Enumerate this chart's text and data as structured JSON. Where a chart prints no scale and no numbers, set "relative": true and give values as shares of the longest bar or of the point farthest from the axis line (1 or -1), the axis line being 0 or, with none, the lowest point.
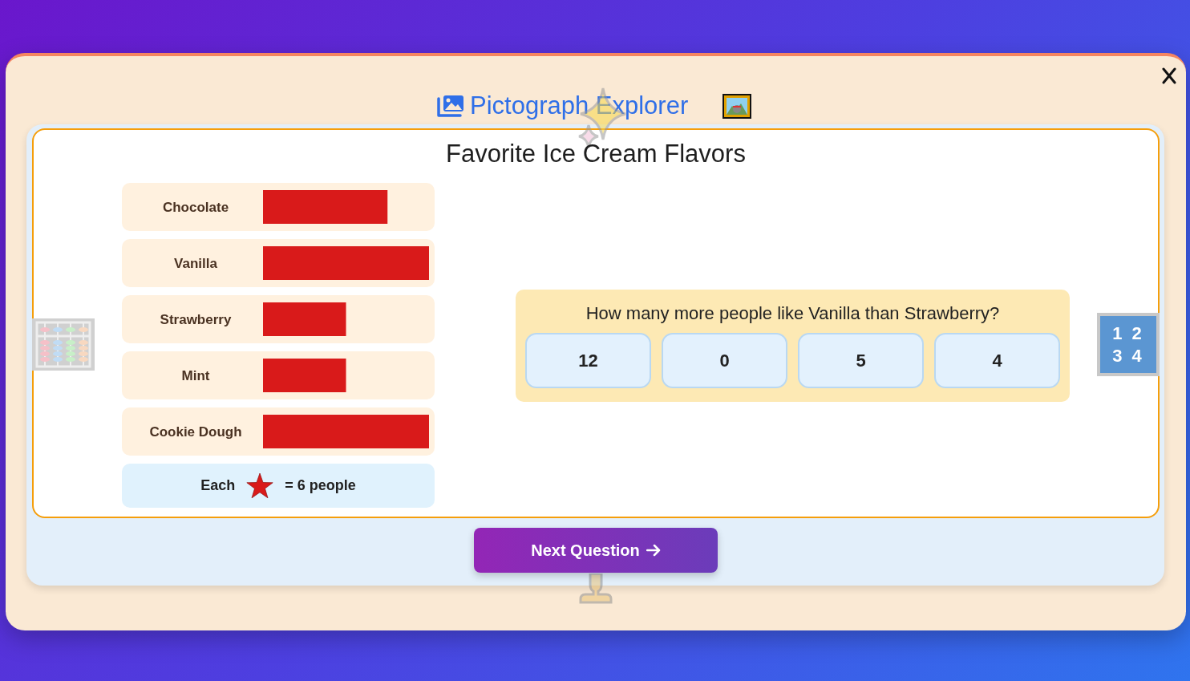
{
  "chart_data": {
    "type": "bar",
    "orientation": "horizontal",
    "relative": true,
    "title": "Favorite Ice Cream Flavors",
    "categories": [
      "Chocolate",
      "Vanilla",
      "Strawberry",
      "Mint",
      "Cookie Dough"
    ],
    "values": [
      0.75,
      1,
      0.5,
      0.5,
      1
    ],
    "color": "#d91a1a",
    "annotations": [
      "Pictograph Explorer",
      "Each",
      "= 6 people",
      "How many more people like Vanilla than Strawberry?",
      "12",
      "0",
      "5",
      "4",
      "Next Question",
      "1 2",
      "3 4"
    ]
  }
}
